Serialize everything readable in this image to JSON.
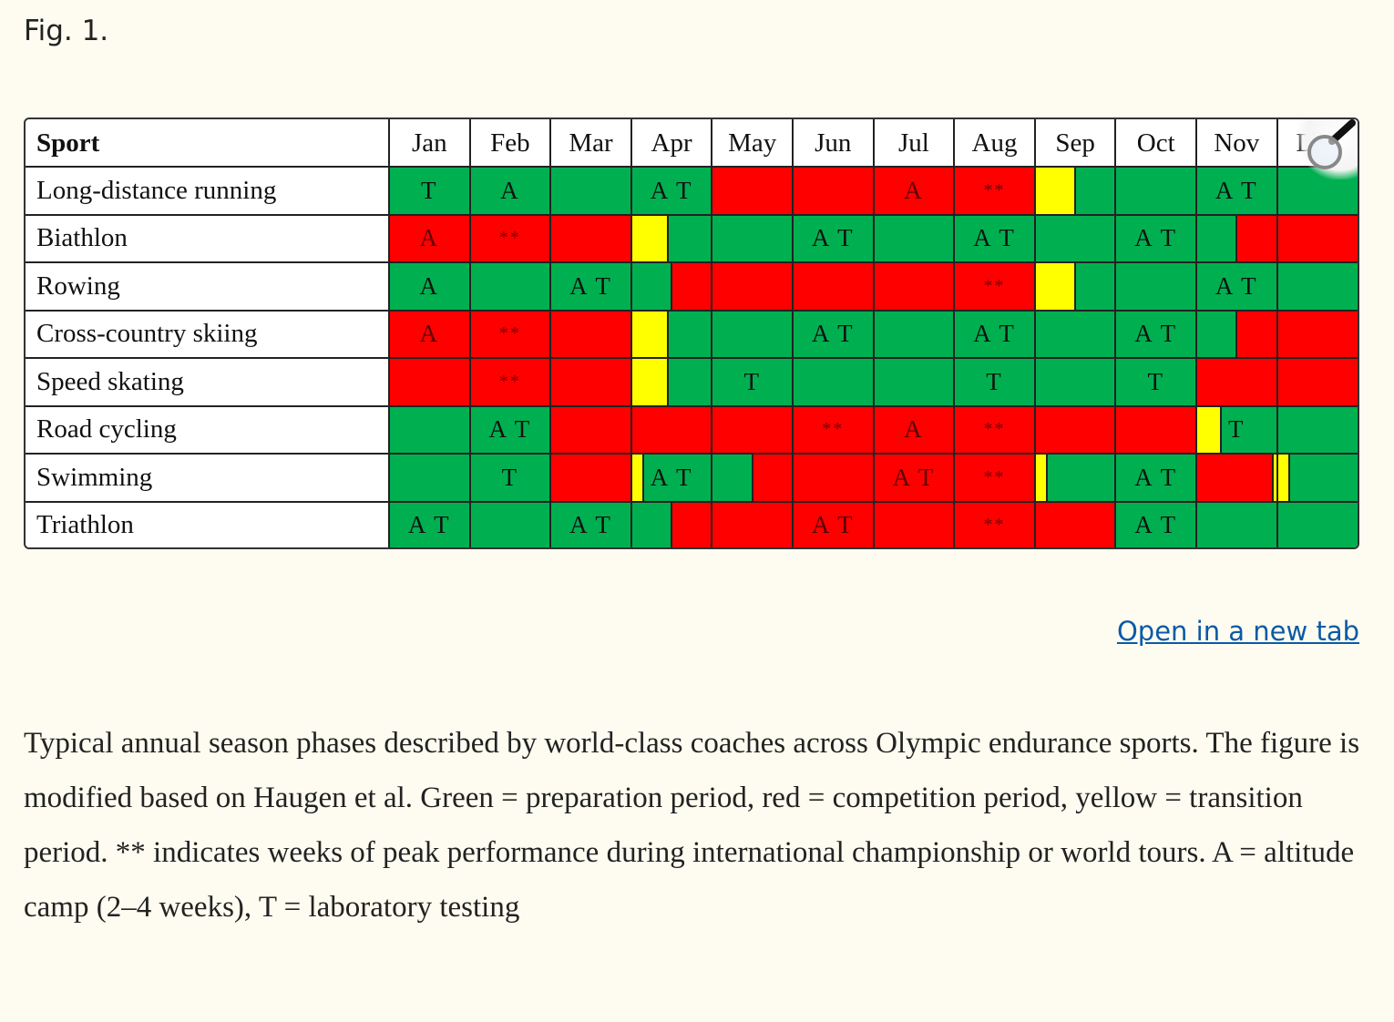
{
  "figure_label": "Fig. 1.",
  "open_link": "Open in a new tab",
  "caption": "Typical annual season phases described by world-class coaches across Olympic endurance sports. The figure is modified based on Haugen et al. Green = preparation period, red = competition period, yellow = transition period. ** indicates weeks of peak performance during international championship or world tours. A = altitude camp (2–4  weeks), T = laboratory testing",
  "zoom_icon": "magnifier-icon",
  "colors": {
    "G": "#00b050",
    "R": "#ff0000",
    "Y": "#ffff00"
  },
  "chart_data": {
    "type": "table",
    "corner_header": "Sport",
    "months": [
      "Jan",
      "Feb",
      "Mar",
      "Apr",
      "May",
      "Jun",
      "Jul",
      "Aug",
      "Sep",
      "Oct",
      "Nov",
      "Dec"
    ],
    "legend": {
      "G": "preparation period",
      "R": "competition period",
      "Y": "transition period"
    },
    "rows": [
      {
        "sport": "Long-distance running",
        "segments": [
          [
            "G",
            0,
            4
          ],
          [
            "R",
            4,
            8
          ],
          [
            "Y",
            8,
            8.5
          ],
          [
            "G",
            8.5,
            12
          ]
        ],
        "labels": [
          "T",
          "A",
          "",
          "A T",
          "",
          "",
          "A",
          "**",
          "",
          "",
          "A T",
          ""
        ]
      },
      {
        "sport": "Biathlon",
        "segments": [
          [
            "R",
            0,
            3
          ],
          [
            "Y",
            3,
            3.45
          ],
          [
            "G",
            3.45,
            10.5
          ],
          [
            "R",
            10.5,
            12
          ]
        ],
        "labels": [
          "A",
          "**",
          "",
          "",
          "",
          "A T",
          "",
          "A T",
          "",
          "A T",
          "",
          ""
        ]
      },
      {
        "sport": "Rowing",
        "segments": [
          [
            "G",
            0,
            3.5
          ],
          [
            "R",
            3.5,
            8
          ],
          [
            "Y",
            8,
            8.5
          ],
          [
            "G",
            8.5,
            12
          ]
        ],
        "labels": [
          "A",
          "",
          "A T",
          "",
          "",
          "",
          "",
          "**",
          "",
          "",
          "A T",
          ""
        ]
      },
      {
        "sport": "Cross-country skiing",
        "segments": [
          [
            "R",
            0,
            3
          ],
          [
            "Y",
            3,
            3.45
          ],
          [
            "G",
            3.45,
            10.5
          ],
          [
            "R",
            10.5,
            12
          ]
        ],
        "labels": [
          "A",
          "**",
          "",
          "",
          "",
          "A T",
          "",
          "A T",
          "",
          "A T",
          "",
          ""
        ]
      },
      {
        "sport": "Speed skating",
        "segments": [
          [
            "R",
            0,
            3
          ],
          [
            "Y",
            3,
            3.45
          ],
          [
            "G",
            3.45,
            10
          ],
          [
            "R",
            10,
            12
          ]
        ],
        "labels": [
          "",
          "**",
          "",
          "",
          "T",
          "",
          "",
          "T",
          "",
          "T",
          "",
          ""
        ]
      },
      {
        "sport": "Road cycling",
        "segments": [
          [
            "G",
            0,
            2
          ],
          [
            "R",
            2,
            10
          ],
          [
            "Y",
            10,
            10.3
          ],
          [
            "G",
            10.3,
            12
          ]
        ],
        "labels": [
          "",
          "A T",
          "",
          "",
          "",
          "**",
          "A",
          "**",
          "",
          "",
          "T",
          ""
        ]
      },
      {
        "sport": "Swimming",
        "segments": [
          [
            "G",
            0,
            2
          ],
          [
            "R",
            2,
            3
          ],
          [
            "Y",
            3,
            3.15
          ],
          [
            "G",
            3.15,
            4.5
          ],
          [
            "R",
            4.5,
            8
          ],
          [
            "Y",
            8,
            8.15
          ],
          [
            "G",
            8.15,
            10
          ],
          [
            "R",
            10,
            10.95
          ],
          [
            "Y",
            10.95,
            11.15
          ],
          [
            "G",
            11.15,
            12
          ]
        ],
        "labels": [
          "",
          "T",
          "",
          "A T",
          "",
          "",
          "A T",
          "**",
          "",
          "A T",
          "",
          ""
        ]
      },
      {
        "sport": "Triathlon",
        "segments": [
          [
            "G",
            0,
            3.5
          ],
          [
            "R",
            3.5,
            9
          ],
          [
            "G",
            9,
            12
          ]
        ],
        "labels": [
          "A T",
          "",
          "A T",
          "",
          "",
          "A T",
          "",
          "**",
          "",
          "A T",
          "",
          ""
        ]
      }
    ]
  }
}
